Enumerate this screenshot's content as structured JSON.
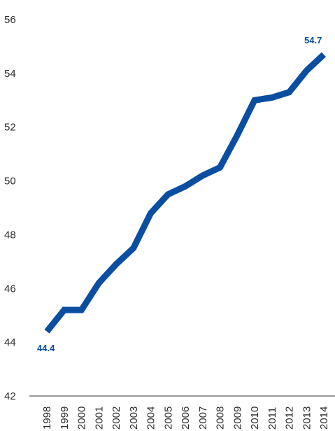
{
  "chart_data": {
    "type": "line",
    "title": "",
    "xlabel": "",
    "ylabel": "",
    "x": [
      "1998",
      "1999",
      "2000",
      "2001",
      "2002",
      "2003",
      "2004",
      "2005",
      "2006",
      "2007",
      "2008",
      "2009",
      "2010",
      "2011",
      "2012",
      "2013",
      "2014"
    ],
    "series": [
      {
        "name": "",
        "values": [
          44.4,
          45.2,
          45.2,
          46.2,
          46.9,
          47.5,
          48.8,
          49.5,
          49.8,
          50.2,
          50.5,
          51.7,
          53.0,
          53.1,
          53.3,
          54.1,
          54.7
        ]
      }
    ],
    "yticks": [
      42,
      44,
      46,
      48,
      50,
      52,
      54,
      56
    ],
    "ylim": [
      42,
      56
    ],
    "grid": false,
    "legend": "none",
    "data_labels": [
      {
        "x": "1998",
        "text": "44.4"
      },
      {
        "x": "2014",
        "text": "54.7"
      }
    ],
    "colors": {
      "line": "#0a4ea2",
      "label": "#0a4ea2",
      "axis": "#333333",
      "text": "#2b2b2b"
    }
  }
}
